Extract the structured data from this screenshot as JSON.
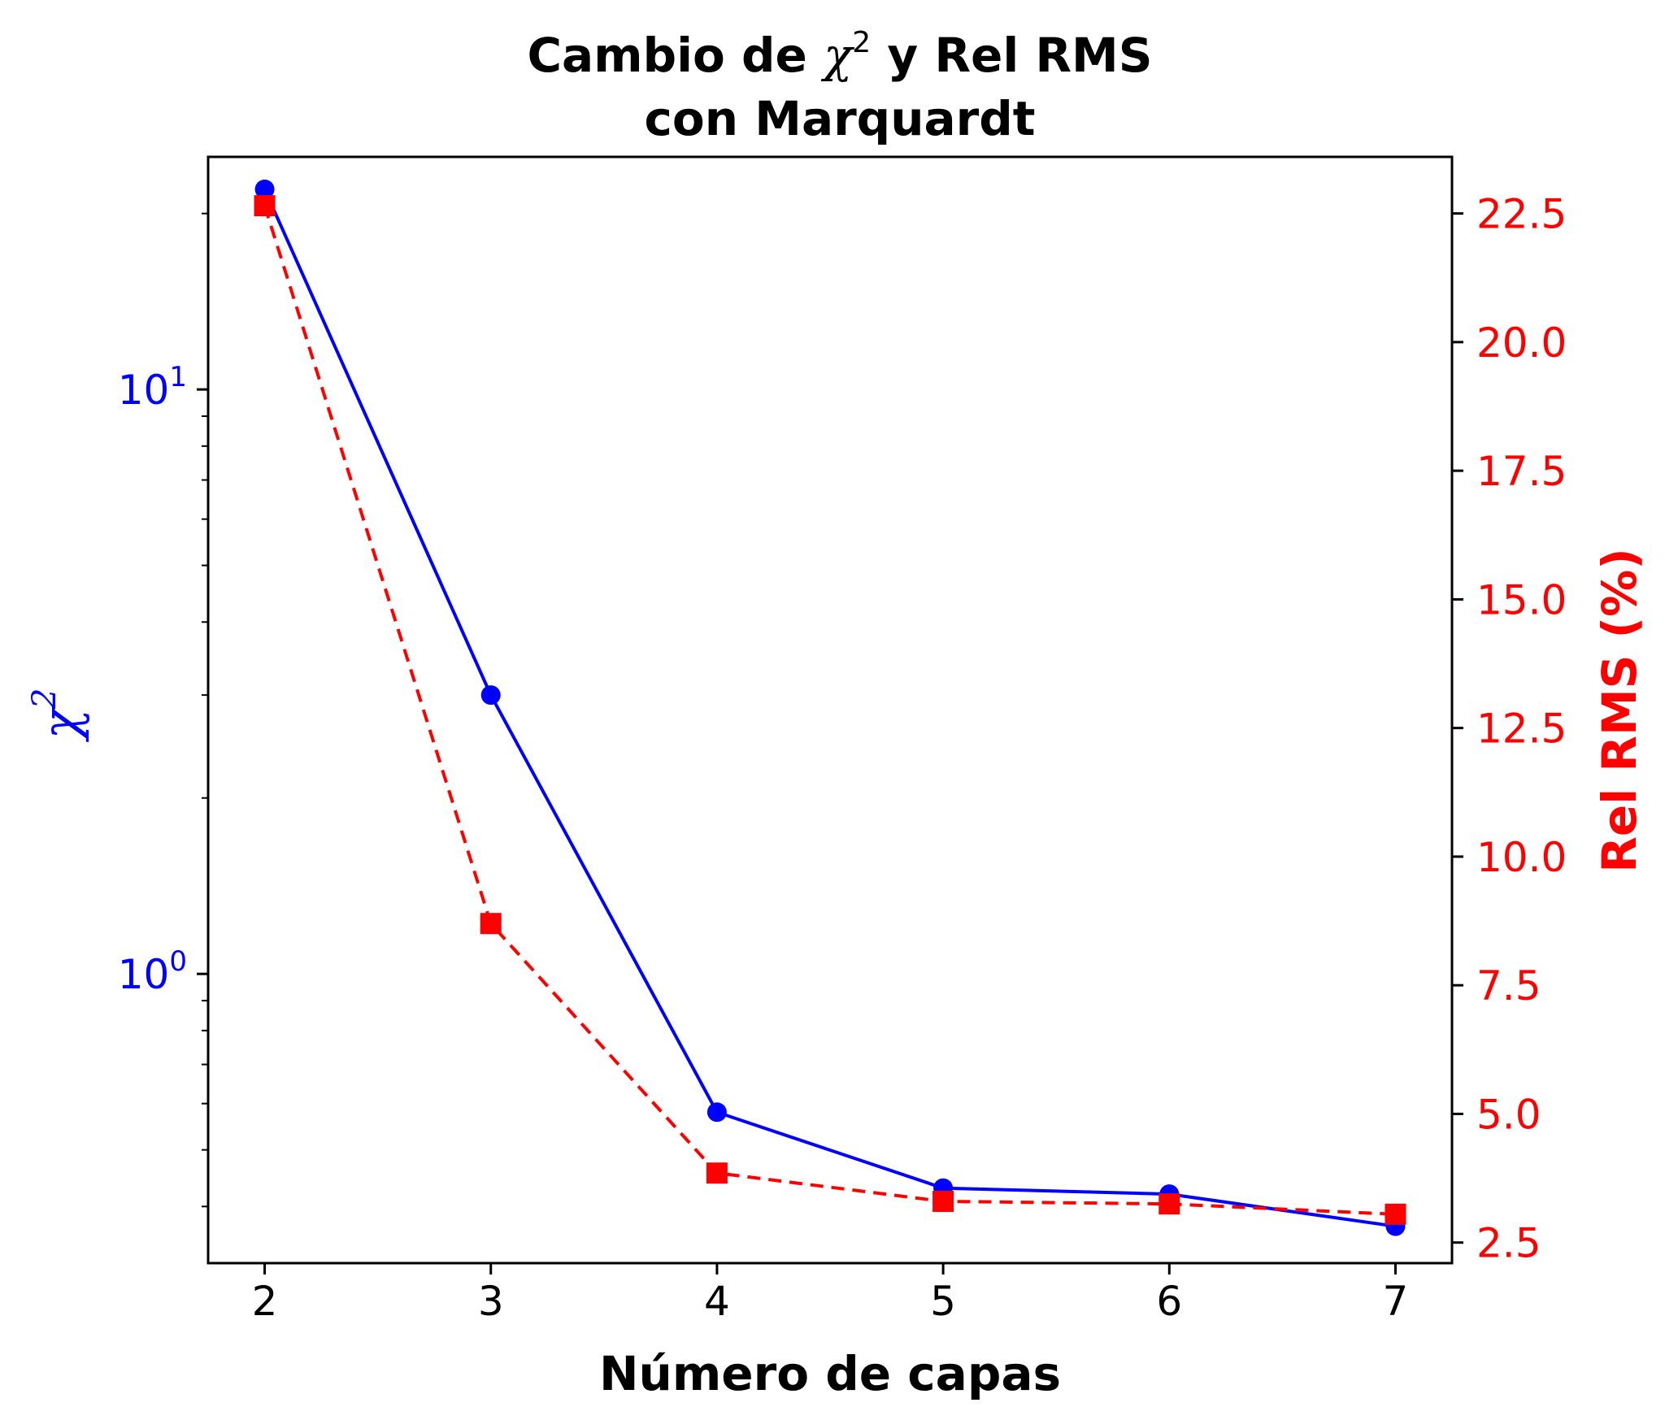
{
  "chart_data": {
    "type": "line",
    "title_lines": [
      "Cambio de χ² y Rel RMS",
      "con Marquardt"
    ],
    "title_prefix": "Cambio de ",
    "title_symbol": "χ",
    "title_sup": "2",
    "title_suffix": " y Rel RMS",
    "title_line2": "con Marquardt",
    "xlabel": "Número de capas",
    "ylabel_left_symbol": "χ",
    "ylabel_left_sup": "2",
    "ylabel_right": "Rel RMS (%)",
    "x": [
      2,
      3,
      4,
      5,
      6,
      7
    ],
    "x_ticks": [
      "2",
      "3",
      "4",
      "5",
      "6",
      "7"
    ],
    "xlim": [
      1.75,
      7.25
    ],
    "series": [
      {
        "axis": "left",
        "scale": "log",
        "values": [
          22,
          3.0,
          0.58,
          0.43,
          0.42,
          0.37
        ],
        "color": "#0000ff",
        "line_style": "solid",
        "marker": "circle"
      },
      {
        "axis": "right",
        "scale": "linear",
        "values": [
          22.65,
          8.7,
          3.85,
          3.3,
          3.25,
          3.05
        ],
        "color": "#ff0000",
        "line_style": "dashed",
        "marker": "square"
      }
    ],
    "y_left": {
      "scale": "log",
      "lim": [
        0.32,
        25
      ],
      "major_ticks": [
        {
          "value": 1,
          "base": "10",
          "exp": "0"
        },
        {
          "value": 10,
          "base": "10",
          "exp": "1"
        }
      ],
      "minor_ticks": [
        0.4,
        0.5,
        0.6,
        0.7,
        0.8,
        0.9,
        2,
        3,
        4,
        5,
        6,
        7,
        8,
        9,
        20
      ],
      "color": "#0000ff"
    },
    "y_right": {
      "scale": "linear",
      "lim": [
        2.1,
        23.6
      ],
      "ticks": [
        2.5,
        5.0,
        7.5,
        10.0,
        12.5,
        15.0,
        17.5,
        20.0,
        22.5
      ],
      "tick_labels": [
        "2.5",
        "5.0",
        "7.5",
        "10.0",
        "12.5",
        "15.0",
        "17.5",
        "20.0",
        "22.5"
      ],
      "color": "#ff0000"
    },
    "grid": false,
    "legend": "none"
  }
}
